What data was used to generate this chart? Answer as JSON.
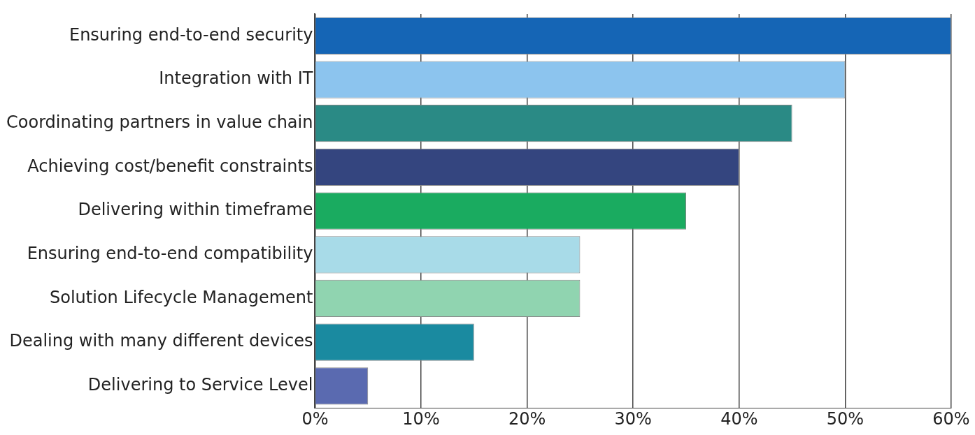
{
  "chart_data": {
    "type": "bar",
    "orientation": "horizontal",
    "categories": [
      "Ensuring end-to-end security",
      "Integration with IT",
      "Coordinating partners in value chain",
      "Achieving cost/benefit constraints",
      "Delivering within timeframe",
      "Ensuring end-to-end compatibility",
      "Solution Lifecycle Management",
      "Dealing with many different devices",
      "Delivering to Service Level"
    ],
    "values": [
      60,
      50,
      45,
      40,
      35,
      25,
      25,
      15,
      5
    ],
    "colors": [
      "#1565b5",
      "#8cc4ee",
      "#2a8a85",
      "#34457f",
      "#1aab60",
      "#a8dbe8",
      "#90d4b0",
      "#1a8aa0",
      "#5a6ab0"
    ],
    "xlim": [
      0,
      60
    ],
    "xticks": [
      {
        "value": 0,
        "label": "0%"
      },
      {
        "value": 10,
        "label": "10%"
      },
      {
        "value": 20,
        "label": "20%"
      },
      {
        "value": 30,
        "label": "30%"
      },
      {
        "value": 40,
        "label": "40%"
      },
      {
        "value": 50,
        "label": "50%"
      },
      {
        "value": 60,
        "label": "60%"
      }
    ],
    "grid": "x",
    "legend": false
  }
}
